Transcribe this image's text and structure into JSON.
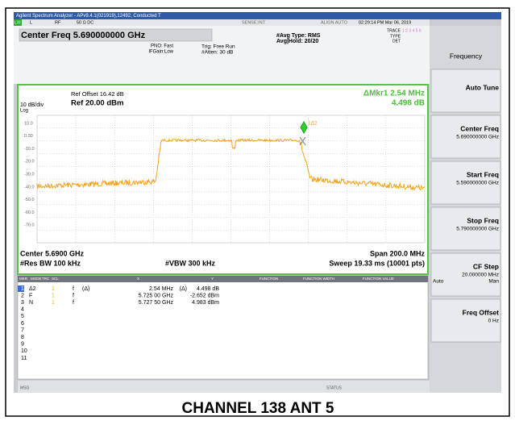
{
  "window_title": "Agilent Spectrum Analyzer - APv9.4.1(021919),12492, Conducted T",
  "status_top": {
    "lxi": "LXI",
    "l": "L",
    "rf": "RF",
    "input": "50 Ω DC",
    "sense": "SENSE:INT",
    "align": "ALIGN AUTO",
    "datetime": "02:29:14 PM Mar 06, 2019"
  },
  "header": {
    "center_freq": "Center Freq 5.690000000 GHz",
    "pno": "PNO: Fast",
    "ifgain": "IFGain:Low",
    "trig": "Trig: Free Run",
    "atten": "#Atten: 30 dB",
    "avg_type": "#Avg Type: RMS",
    "avg_hold": "Avg|Hold: 20/20",
    "trace": "TRACE",
    "trace_nums": "1 2 3 4 5 6",
    "type": "TYPE",
    "det": "DET"
  },
  "graph": {
    "ref_offset": "Ref Offset 16.42 dB",
    "scale": "10 dB/div",
    "ref": "Ref 20.00 dBm",
    "log": "Log",
    "marker_delta": "ΔMkr1 2.54 MHz",
    "marker_value": "4.498 dB",
    "marker_label": "1Δ2",
    "y_labels": [
      "10.0",
      "0.00",
      "-10.0",
      "-20.0",
      "-30.0",
      "-40.0",
      "-50.0",
      "-60.0",
      "-70.0"
    ],
    "center": "Center 5.6900 GHz",
    "span": "Span 200.0 MHz",
    "rbw": "#Res BW 100 kHz",
    "vbw": "#VBW 300 kHz",
    "sweep": "Sweep  19.33 ms (10001 pts)"
  },
  "marker_table": {
    "headers": [
      "MKR",
      "MODE",
      "TRC",
      "SCL",
      "X",
      "Y",
      "FUNCTION",
      "FUNCTION WIDTH",
      "FUNCTION VALUE"
    ],
    "rows": [
      {
        "n": "1",
        "mode": "Δ2",
        "trc": "1",
        "scl": "f",
        "x_mode": "(Δ)",
        "x": "2.54 MHz",
        "y_mode": "(Δ)",
        "y": "4.498 dB"
      },
      {
        "n": "2",
        "mode": "F",
        "trc": "1",
        "scl": "f",
        "x": "5.725 00 GHz",
        "y": "-2.652 dBm"
      },
      {
        "n": "3",
        "mode": "N",
        "trc": "1",
        "scl": "f",
        "x": "5.727 50 GHz",
        "y": "4.983 dBm"
      }
    ],
    "empty_rows": [
      "4",
      "5",
      "6",
      "7",
      "8",
      "9",
      "10",
      "11"
    ]
  },
  "status": {
    "msg": "MSG",
    "status": "STATUS"
  },
  "softkeys": [
    {
      "label": "Frequency"
    },
    {
      "label": "Auto Tune"
    },
    {
      "label": "Center Freq",
      "value": "5.690000000 GHz"
    },
    {
      "label": "Start Freq",
      "value": "5.590000000 GHz"
    },
    {
      "label": "Stop Freq",
      "value": "5.790000000 GHz"
    },
    {
      "label": "CF Step",
      "value": "20.000000 MHz",
      "auto": "Auto",
      "man": "Man"
    },
    {
      "label": "Freq Offset",
      "value": "0 Hz"
    }
  ],
  "caption": "CHANNEL 138 ANT 5"
}
